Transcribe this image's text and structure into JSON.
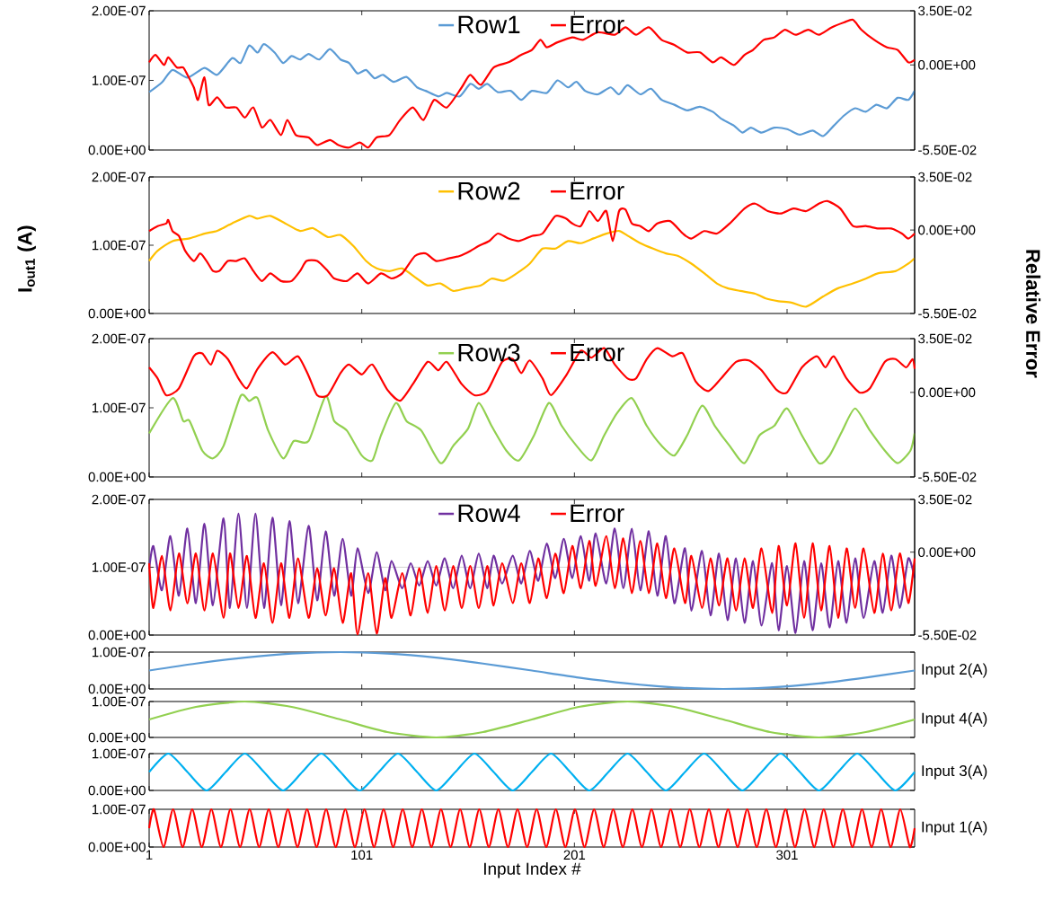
{
  "chart_data": [
    {
      "type": "line",
      "xlim": [
        1,
        361
      ],
      "xticks": [
        1,
        101,
        201,
        301
      ],
      "tick_labels": "y",
      "legend": "top",
      "ylim": [
        0,
        2e-07
      ],
      "yticks": [
        {
          "value": 0,
          "label": "0.00E+00"
        },
        {
          "value": 1e-07,
          "label": "1.00E-07"
        },
        {
          "value": 2e-07,
          "label": "2.00E-07"
        }
      ],
      "y2lim": [
        -0.055,
        0.035
      ],
      "y2ticks": [
        {
          "value": -0.055,
          "label": "-5.50E-02"
        },
        {
          "value": 0,
          "label": "0.00E+00"
        },
        {
          "value": 0.035,
          "label": "3.50E-02"
        }
      ],
      "series": [
        {
          "name": "Row1",
          "color": "#5b9bd5",
          "x": [
            1,
            7,
            12,
            19,
            27,
            33,
            40,
            44,
            48,
            52,
            55,
            60,
            64,
            68,
            72,
            76,
            81,
            86,
            91,
            95,
            99,
            103,
            107,
            111,
            116,
            122,
            127,
            131,
            137,
            141,
            147,
            152,
            156,
            160,
            165,
            171,
            176,
            181,
            188,
            193,
            198,
            202,
            206,
            212,
            218,
            222,
            226,
            232,
            237,
            242,
            248,
            254,
            260,
            266,
            270,
            276,
            280,
            284,
            289,
            295,
            301,
            307,
            313,
            318,
            323,
            328,
            333,
            338,
            343,
            348,
            353,
            358,
            361
          ],
          "values": [
            8.3e-08,
            9.7e-08,
            1.15e-07,
            1.04e-07,
            1.18e-07,
            1.08e-07,
            1.32e-07,
            1.25e-07,
            1.5e-07,
            1.4e-07,
            1.52e-07,
            1.4e-07,
            1.25e-07,
            1.35e-07,
            1.3e-07,
            1.38e-07,
            1.3e-07,
            1.45e-07,
            1.3e-07,
            1.25e-07,
            1.1e-07,
            1.15e-07,
            1.03e-07,
            1.08e-07,
            9.8e-08,
            1.05e-07,
            9e-08,
            8.5e-08,
            7.7e-08,
            8.2e-08,
            7.7e-08,
            9.5e-08,
            8.8e-08,
            9.5e-08,
            8.3e-08,
            8.5e-08,
            7.2e-08,
            8.5e-08,
            8.2e-08,
            1e-07,
            9e-08,
            9.8e-08,
            8.5e-08,
            8e-08,
            9e-08,
            8e-08,
            9.3e-08,
            8e-08,
            8.8e-08,
            7.2e-08,
            6.5e-08,
            5.7e-08,
            6.2e-08,
            5.5e-08,
            4.5e-08,
            3.5e-08,
            2.5e-08,
            3.2e-08,
            2.5e-08,
            3.2e-08,
            3e-08,
            2.2e-08,
            2.8e-08,
            2e-08,
            3.5e-08,
            5e-08,
            6e-08,
            5.5e-08,
            6.5e-08,
            6e-08,
            7.5e-08,
            7.2e-08,
            8.5e-08
          ]
        },
        {
          "name": "Error",
          "color": "#ff0000",
          "axis": "y2",
          "x": [
            1,
            4,
            8,
            10,
            14,
            17,
            19,
            22,
            24,
            27,
            29,
            33,
            37,
            42,
            46,
            50,
            54,
            58,
            63,
            66,
            70,
            76,
            80,
            86,
            90,
            95,
            100,
            104,
            108,
            114,
            119,
            125,
            130,
            135,
            141,
            148,
            152,
            157,
            163,
            170,
            176,
            181,
            185,
            188,
            193,
            200,
            205,
            212,
            220,
            225,
            230,
            236,
            242,
            248,
            254,
            260,
            266,
            270,
            276,
            281,
            285,
            290,
            295,
            300,
            305,
            311,
            316,
            322,
            328,
            332,
            336,
            342,
            348,
            353,
            358,
            361
          ],
          "values": [
            0.0017,
            0.0065,
            0,
            0.0049,
            -0.0016,
            -0.0016,
            -0.0064,
            -0.0145,
            -0.0226,
            -0.008,
            -0.0259,
            -0.021,
            -0.0275,
            -0.0275,
            -0.034,
            -0.0275,
            -0.0404,
            -0.0356,
            -0.0453,
            -0.0356,
            -0.0453,
            -0.0469,
            -0.0518,
            -0.0485,
            -0.0518,
            -0.0534,
            -0.0501,
            -0.0534,
            -0.0469,
            -0.0453,
            -0.0356,
            -0.0275,
            -0.0356,
            -0.0226,
            -0.0275,
            -0.0145,
            -0.0064,
            -0.0129,
            -0.0016,
            0.0017,
            0.0065,
            0.0097,
            0.0162,
            0.0114,
            0.0146,
            0.0178,
            0.0162,
            0.0211,
            0.0195,
            0.0243,
            0.0195,
            0.0243,
            0.0162,
            0.013,
            0.0081,
            0.0081,
            0.0017,
            0.0049,
            0,
            0.0065,
            0.0097,
            0.0162,
            0.0178,
            0.0227,
            0.0195,
            0.0227,
            0.0195,
            0.0243,
            0.0276,
            0.0292,
            0.0227,
            0.0162,
            0.0114,
            0.0097,
            0.0017,
            0.0033
          ]
        }
      ]
    },
    {
      "type": "line",
      "xlim": [
        1,
        361
      ],
      "xticks": [
        1,
        101,
        201,
        301
      ],
      "tick_labels": "y",
      "legend": "top",
      "ylabel": "I$_{out1}$ (A)",
      "y2label": "Relative Error",
      "ylim": [
        0,
        2e-07
      ],
      "yticks": [
        {
          "value": 0,
          "label": "0.00E+00"
        },
        {
          "value": 1e-07,
          "label": "1.00E-07"
        },
        {
          "value": 2e-07,
          "label": "2.00E-07"
        }
      ],
      "y2lim": [
        -0.055,
        0.035
      ],
      "y2ticks": [
        {
          "value": -0.055,
          "label": "-5.50E-02"
        },
        {
          "value": 0,
          "label": "0.00E+00"
        },
        {
          "value": 0.035,
          "label": "3.50E-02"
        }
      ],
      "series": [
        {
          "name": "Row2",
          "color": "#ffc000",
          "x": [
            1,
            5,
            12,
            20,
            27,
            33,
            40,
            48,
            52,
            58,
            65,
            72,
            78,
            85,
            91,
            97,
            103,
            108,
            114,
            120,
            127,
            132,
            138,
            144,
            150,
            157,
            162,
            168,
            174,
            180,
            186,
            192,
            198,
            204,
            210,
            216,
            222,
            226,
            232,
            238,
            244,
            250,
            256,
            262,
            268,
            273,
            279,
            286,
            291,
            297,
            303,
            310,
            318,
            325,
            332,
            338,
            344,
            352,
            358,
            361
          ],
          "values": [
            7.7e-08,
            9.2e-08,
            1.06e-07,
            1.1e-07,
            1.17e-07,
            1.21e-07,
            1.32e-07,
            1.43e-07,
            1.39e-07,
            1.43e-07,
            1.32e-07,
            1.21e-07,
            1.25e-07,
            1.12e-07,
            1.15e-07,
            9.9e-08,
            7.7e-08,
            6.6e-08,
            6.2e-08,
            6.6e-08,
            5.1e-08,
            4.1e-08,
            4.4e-08,
            3.3e-08,
            3.7e-08,
            4.1e-08,
            5.1e-08,
            4.8e-08,
            5.9e-08,
            7.3e-08,
            9.5e-08,
            9.5e-08,
            1.06e-07,
            1.03e-07,
            1.1e-07,
            1.17e-07,
            1.21e-07,
            1.14e-07,
            1.03e-07,
            9.5e-08,
            8.8e-08,
            8.4e-08,
            7.3e-08,
            5.9e-08,
            4.4e-08,
            3.7e-08,
            3.3e-08,
            2.9e-08,
            2.2e-08,
            1.8e-08,
            1.6e-08,
            1e-08,
            2.5e-08,
            3.7e-08,
            4.4e-08,
            5.1e-08,
            5.9e-08,
            6.2e-08,
            7.3e-08,
            8.1e-08
          ]
        },
        {
          "name": "Error",
          "color": "#ff0000",
          "axis": "y2",
          "x": [
            1,
            5,
            9,
            10,
            12,
            15,
            18,
            22,
            25,
            28,
            31,
            34,
            38,
            42,
            46,
            50,
            54,
            58,
            63,
            68,
            72,
            75,
            80,
            85,
            88,
            94,
            99,
            104,
            110,
            115,
            120,
            126,
            131,
            136,
            142,
            147,
            152,
            156,
            161,
            165,
            170,
            175,
            181,
            186,
            192,
            197,
            200,
            204,
            208,
            212,
            216,
            219,
            222,
            225,
            228,
            232,
            236,
            240,
            246,
            252,
            256,
            262,
            268,
            274,
            281,
            286,
            292,
            298,
            304,
            310,
            316,
            320,
            326,
            332,
            338,
            344,
            350,
            355,
            358,
            361
          ],
          "values": [
            -0.0007,
            0.0026,
            0.0043,
            0.0066,
            -0.0007,
            -0.0039,
            -0.0138,
            -0.0204,
            -0.0154,
            -0.0204,
            -0.027,
            -0.027,
            -0.0204,
            -0.0204,
            -0.0187,
            -0.027,
            -0.0336,
            -0.0286,
            -0.0336,
            -0.0336,
            -0.027,
            -0.0204,
            -0.0204,
            -0.027,
            -0.0319,
            -0.0336,
            -0.0286,
            -0.0352,
            -0.0286,
            -0.0319,
            -0.0286,
            -0.0171,
            -0.0154,
            -0.0204,
            -0.0187,
            -0.0171,
            -0.0138,
            -0.0105,
            -0.0072,
            -0.0023,
            -0.0056,
            -0.0072,
            -0.0039,
            -0.0023,
            0.0092,
            0.0076,
            0.0043,
            0.0026,
            0.0125,
            0.0059,
            0.0125,
            -0.0072,
            0.0125,
            0.0135,
            0.0043,
            0.0026,
            -0.0007,
            0.0043,
            0.0059,
            -0.0023,
            -0.0056,
            -0.0007,
            -0.0023,
            0.0043,
            0.0142,
            0.0174,
            0.0125,
            0.0109,
            0.0142,
            0.0125,
            0.0174,
            0.0191,
            0.0142,
            0.0026,
            0.0026,
            0.001,
            0.001,
            -0.0023,
            -0.0056,
            -0.0023
          ]
        }
      ]
    },
    {
      "type": "line",
      "xlim": [
        1,
        361
      ],
      "xticks": [
        1,
        101,
        201,
        301
      ],
      "tick_labels": "y",
      "legend": "top",
      "ylim": [
        0,
        2e-07
      ],
      "yticks": [
        {
          "value": 0,
          "label": "0.00E+00"
        },
        {
          "value": 1e-07,
          "label": "1.00E-07"
        },
        {
          "value": 2e-07,
          "label": "2.00E-07"
        }
      ],
      "y2lim": [
        -0.055,
        0.035
      ],
      "y2ticks": [
        {
          "value": -0.055,
          "label": "-5.50E-02"
        },
        {
          "value": 0,
          "label": "0.00E+00"
        },
        {
          "value": 0.035,
          "label": "3.50E-02"
        }
      ],
      "series": [
        {
          "name": "Row3",
          "color": "#92d050",
          "x": [
            1,
            12,
            17,
            20,
            26,
            31,
            36,
            44,
            48,
            52,
            57,
            64,
            69,
            76,
            84,
            88,
            94,
            101,
            106,
            110,
            117,
            122,
            129,
            138,
            144,
            151,
            156,
            162,
            169,
            175,
            182,
            189,
            195,
            202,
            209,
            215,
            221,
            228,
            235,
            242,
            248,
            254,
            261,
            267,
            274,
            281,
            288,
            295,
            301,
            308,
            316,
            321,
            327,
            333,
            340,
            347,
            353,
            359,
            361
          ],
          "values": [
            6.3e-08,
            1.14e-07,
            8.1e-08,
            8.1e-08,
            3.8e-08,
            2.7e-08,
            4.5e-08,
            1.17e-07,
            1.1e-07,
            1.14e-07,
            6.7e-08,
            2.7e-08,
            5.2e-08,
            5.2e-08,
            1.17e-07,
            8.1e-08,
            6.7e-08,
            3.1e-08,
            2.4e-08,
            6e-08,
            1.07e-07,
            8.1e-08,
            6.7e-08,
            2e-08,
            4.5e-08,
            7e-08,
            1.07e-07,
            7.4e-08,
            3.8e-08,
            2.4e-08,
            6e-08,
            1.07e-07,
            7.4e-08,
            4.5e-08,
            2.4e-08,
            6e-08,
            9.2e-08,
            1.14e-07,
            7.4e-08,
            4.5e-08,
            3.1e-08,
            6e-08,
            1.03e-07,
            7.4e-08,
            4.5e-08,
            2e-08,
            6e-08,
            7.4e-08,
            9.9e-08,
            6e-08,
            2e-08,
            3.1e-08,
            6.7e-08,
            9.9e-08,
            6.7e-08,
            3.8e-08,
            2e-08,
            3.8e-08,
            6.3e-08
          ]
        },
        {
          "name": "Error",
          "color": "#ff0000",
          "axis": "y2",
          "x": [
            1,
            5,
            9,
            15,
            22,
            26,
            30,
            33,
            38,
            43,
            47,
            52,
            59,
            65,
            71,
            76,
            80,
            85,
            91,
            95,
            101,
            106,
            113,
            119,
            125,
            132,
            137,
            141,
            148,
            154,
            160,
            167,
            172,
            176,
            180,
            186,
            190,
            197,
            204,
            209,
            215,
            220,
            226,
            230,
            235,
            240,
            247,
            252,
            258,
            264,
            270,
            277,
            283,
            289,
            296,
            301,
            308,
            315,
            319,
            323,
            329,
            335,
            340,
            347,
            352,
            357,
            360,
            361
          ],
          "values": [
            0.0163,
            0.0091,
            -0.0018,
            0.0027,
            0.0235,
            0.0253,
            0.0181,
            0.0271,
            0.0217,
            0.0091,
            0.0027,
            0.0154,
            0.0262,
            0.0181,
            0.0235,
            0.0108,
            -0.0018,
            -0.0018,
            0.0126,
            0.0181,
            0.0117,
            0.0181,
            0.0018,
            -0.0054,
            0.0054,
            0.0199,
            0.0144,
            0.0199,
            0.0054,
            -0.0018,
            0.0009,
            0.0199,
            0.0217,
            0.0126,
            0.0208,
            0.0091,
            -0.0018,
            0.0108,
            0.0271,
            0.0226,
            0.0288,
            0.0181,
            0.0091,
            0.0091,
            0.0217,
            0.0288,
            0.0235,
            0.0253,
            0.0072,
            0.0009,
            0.0091,
            0.0199,
            0.0208,
            0.0144,
            0.0018,
            0,
            0.0163,
            0.0235,
            0.0163,
            0.0235,
            0.0091,
            0,
            0.0027,
            0.0199,
            0.0217,
            0.0163,
            0.0217,
            0.0154
          ]
        }
      ]
    },
    {
      "type": "line",
      "xlim": [
        1,
        361
      ],
      "xticks": [
        1,
        101,
        201,
        301
      ],
      "tick_labels": "y",
      "legend": "top",
      "grid": "y",
      "ylim": [
        0,
        2e-07
      ],
      "yticks": [
        {
          "value": 0,
          "label": "0.00E+00"
        },
        {
          "value": 1e-07,
          "label": "1.00E-07"
        },
        {
          "value": 2e-07,
          "label": "2.00E-07"
        }
      ],
      "y2lim": [
        -0.055,
        0.035
      ],
      "y2ticks": [
        {
          "value": -0.055,
          "label": "-5.50E-02"
        },
        {
          "value": 0,
          "label": "0.00E+00"
        },
        {
          "value": 0.035,
          "label": "3.50E-02"
        }
      ],
      "x": [
        1,
        3,
        7,
        11,
        15,
        19,
        23,
        27,
        31,
        36,
        39,
        43,
        47,
        51,
        55,
        59,
        63,
        67,
        71,
        76,
        80,
        84,
        88,
        92,
        96,
        99,
        104,
        108,
        112,
        115,
        120,
        124,
        128,
        132,
        136,
        140,
        144,
        148,
        152,
        156,
        160,
        163,
        167,
        172,
        176,
        180,
        184,
        188,
        192,
        196,
        200,
        204,
        208,
        211,
        216,
        220,
        224,
        228,
        232,
        236,
        240,
        244,
        248,
        253,
        256,
        261,
        265,
        269,
        273,
        277,
        281,
        285,
        289,
        294,
        297,
        301,
        305,
        309,
        313,
        317,
        321,
        325,
        329,
        333,
        337,
        342,
        346,
        350,
        354,
        358,
        361
      ],
      "series": [
        {
          "name": "Row4",
          "color": "#7030a0",
          "values": [
            9.8e-08,
            1.31e-07,
            6.6e-08,
            1.46e-07,
            5.8e-08,
            1.57e-07,
            4.7e-08,
            1.64e-07,
            4.4e-08,
            1.72e-07,
            4e-08,
            1.79e-07,
            4e-08,
            1.79e-07,
            4e-08,
            1.73e-07,
            4.4e-08,
            1.68e-07,
            4.7e-08,
            1.61e-07,
            5.1e-08,
            1.53e-07,
            5.8e-08,
            1.42e-07,
            5.8e-08,
            1.28e-07,
            6.2e-08,
            1.22e-07,
            6.6e-08,
            1.09e-07,
            6.9e-08,
            1.06e-07,
            7.3e-08,
            1.09e-07,
            7.3e-08,
            1.13e-07,
            6.9e-08,
            1.17e-07,
            6.9e-08,
            1.2e-07,
            6.9e-08,
            1.17e-07,
            7.6e-08,
            1.17e-07,
            7.6e-08,
            1.24e-07,
            8e-08,
            1.35e-07,
            8.4e-08,
            1.42e-07,
            8.4e-08,
            1.46e-07,
            8e-08,
            1.5e-07,
            7.6e-08,
            1.57e-07,
            6.9e-08,
            1.57e-07,
            6.6e-08,
            1.53e-07,
            5.8e-08,
            1.46e-07,
            4.7e-08,
            1.28e-07,
            3.6e-08,
            1.24e-07,
            2.9e-08,
            1.2e-07,
            2.2e-08,
            1.13e-07,
            1.8e-08,
            1.09e-07,
            1.4e-08,
            1.06e-07,
            7e-09,
            1.02e-07,
            3e-09,
            1.09e-07,
            7e-09,
            1.06e-07,
            1.1e-08,
            1.09e-07,
            1.8e-08,
            1.13e-07,
            2.5e-08,
            1.09e-07,
            3.3e-08,
            1.17e-07,
            4e-08,
            1.13e-07,
            8.4e-08
          ]
        },
        {
          "name": "Error",
          "color": "#ff0000",
          "axis": "y2",
          "values": [
            -0.0074,
            -0.037,
            -0.0025,
            -0.0387,
            -0.0009,
            -0.034,
            -0.0009,
            -0.0387,
            -0.0009,
            -0.0436,
            -0.0009,
            -0.037,
            -0.0025,
            -0.0436,
            -0.0074,
            -0.0469,
            -0.0074,
            -0.0436,
            -0.0041,
            -0.0436,
            -0.0107,
            -0.042,
            -0.0107,
            -0.0469,
            -0.014,
            -0.0545,
            -0.014,
            -0.054,
            -0.0173,
            -0.0436,
            -0.014,
            -0.042,
            -0.0107,
            -0.0403,
            -0.0091,
            -0.0387,
            -0.0091,
            -0.037,
            -0.0091,
            -0.037,
            -0.0091,
            -0.0354,
            -0.0074,
            -0.0338,
            -0.0074,
            -0.0338,
            -0.0041,
            -0.0305,
            -0.0009,
            -0.0272,
            0.0041,
            -0.0239,
            0.0075,
            -0.0223,
            0.0107,
            -0.0239,
            0.0091,
            -0.0272,
            0.0075,
            -0.0272,
            0.0058,
            -0.0305,
            0.0025,
            -0.0338,
            -0.0025,
            -0.037,
            -0.0041,
            -0.0354,
            -0.0041,
            -0.0387,
            -0.0041,
            -0.037,
            0.0025,
            -0.0403,
            0.0041,
            -0.0354,
            0.0058,
            -0.0436,
            0.0058,
            -0.0387,
            0.0041,
            -0.0436,
            0.0025,
            -0.037,
            0.0025,
            -0.0403,
            -0.0009,
            -0.0387,
            -0.0009,
            -0.0338,
            -0.0041
          ]
        }
      ]
    },
    {
      "type": "line",
      "xlim": [
        1,
        361
      ],
      "xticks": [
        1,
        101,
        201,
        301
      ],
      "tick_labels": "y",
      "ylabel": "Input 2(A)",
      "color": "#5b9bd5",
      "ylim": [
        0,
        1e-07
      ],
      "yticks": [
        {
          "value": 0,
          "label": "0.00E+00"
        },
        {
          "value": 1e-07,
          "label": "1.00E-07"
        }
      ],
      "x": [
        1,
        23,
        46,
        68,
        91,
        113,
        136,
        158,
        181,
        203,
        226,
        248,
        271,
        293,
        316,
        338,
        361
      ],
      "values": [
        5e-08,
        6.9e-08,
        8.5e-08,
        9.6e-08,
        1e-07,
        9.6e-08,
        8.5e-08,
        6.9e-08,
        5e-08,
        3.1e-08,
        1.5e-08,
        4e-09,
        0,
        4e-09,
        1.5e-08,
        3.1e-08,
        5e-08
      ]
    },
    {
      "type": "line",
      "xlim": [
        1,
        361
      ],
      "xticks": [
        1,
        101,
        201,
        301
      ],
      "tick_labels": "y",
      "ylabel": "Input 4(A)",
      "color": "#92d050",
      "ylim": [
        0,
        1e-07
      ],
      "yticks": [
        {
          "value": 0,
          "label": "0.00E+00"
        },
        {
          "value": 1e-07,
          "label": "1.00E-07"
        }
      ],
      "x": [
        1,
        23,
        46,
        68,
        91,
        113,
        136,
        158,
        181,
        203,
        226,
        248,
        271,
        293,
        316,
        338,
        361
      ],
      "values": [
        5e-08,
        8.5e-08,
        1e-07,
        8.5e-08,
        5e-08,
        1.5e-08,
        0,
        1.5e-08,
        5e-08,
        8.5e-08,
        1e-07,
        8.5e-08,
        5e-08,
        1.5e-08,
        0,
        1.5e-08,
        5e-08
      ]
    },
    {
      "type": "line",
      "xlim": [
        1,
        361
      ],
      "xticks": [
        1,
        101,
        201,
        301
      ],
      "tick_labels": "y",
      "ylabel": "Input 3(A)",
      "color": "#00b0f0",
      "ylim": [
        0,
        1e-07
      ],
      "yticks": [
        {
          "value": 0,
          "label": "0.00E+00"
        },
        {
          "value": 1e-07,
          "label": "1.00E-07"
        }
      ],
      "x": [
        1,
        10,
        19,
        28,
        37,
        46,
        55,
        64,
        73,
        82,
        91,
        100,
        109,
        118,
        127,
        136,
        145,
        154,
        163,
        172,
        181,
        190,
        199,
        208,
        217,
        226,
        235,
        244,
        253,
        262,
        271,
        280,
        289,
        298,
        307,
        316,
        325,
        334,
        343,
        352,
        361
      ],
      "values": [
        5e-08,
        1e-07,
        5e-08,
        0,
        5e-08,
        1e-07,
        5e-08,
        0,
        5e-08,
        1e-07,
        5e-08,
        0,
        5e-08,
        1e-07,
        5e-08,
        0,
        5e-08,
        1e-07,
        5e-08,
        0,
        5e-08,
        1e-07,
        5e-08,
        0,
        5e-08,
        1e-07,
        5e-08,
        0,
        5e-08,
        1e-07,
        5e-08,
        0,
        5e-08,
        1e-07,
        5e-08,
        0,
        5e-08,
        1e-07,
        5e-08,
        0,
        5e-08
      ]
    },
    {
      "type": "line",
      "xlim": [
        1,
        361
      ],
      "xticks": [
        1,
        101,
        201,
        301
      ],
      "xlabel": "Input Index #",
      "ylabel": "Input 1(A)",
      "color": "#ff0000",
      "ylim": [
        0,
        1e-07
      ],
      "yticks": [
        {
          "value": 0,
          "label": "0.00E+00"
        },
        {
          "value": 1e-07,
          "label": "1.00E-07"
        }
      ],
      "x": [
        1,
        3.25,
        7.75,
        12.25,
        16.75,
        21.25,
        25.75,
        30.25,
        34.75,
        39.25,
        43.75,
        48.25,
        52.75,
        57.25,
        61.75,
        66.25,
        70.75,
        75.25,
        79.75,
        84.25,
        88.75,
        93.25,
        97.75,
        102.25,
        106.75,
        111.25,
        115.75,
        120.25,
        124.75,
        129.25,
        133.75,
        138.25,
        142.75,
        147.25,
        151.75,
        156.25,
        160.75,
        165.25,
        169.75,
        174.25,
        178.75,
        183.25,
        187.75,
        192.25,
        196.75,
        201.25,
        205.75,
        210.25,
        214.75,
        219.25,
        223.75,
        228.25,
        232.75,
        237.25,
        241.75,
        246.25,
        250.75,
        255.25,
        259.75,
        264.25,
        268.75,
        273.25,
        277.75,
        282.25,
        286.75,
        291.25,
        295.75,
        300.25,
        304.75,
        309.25,
        313.75,
        318.25,
        322.75,
        327.25,
        331.75,
        336.25,
        340.75,
        345.25,
        349.75,
        354.25,
        358.75,
        361
      ],
      "values": [
        5e-08,
        1e-07,
        0,
        1e-07,
        0,
        1e-07,
        0,
        1e-07,
        0,
        1e-07,
        0,
        1e-07,
        0,
        1e-07,
        0,
        1e-07,
        0,
        1e-07,
        0,
        1e-07,
        0,
        1e-07,
        0,
        1e-07,
        0,
        1e-07,
        0,
        1e-07,
        0,
        1e-07,
        0,
        1e-07,
        0,
        1e-07,
        0,
        1e-07,
        0,
        1e-07,
        0,
        1e-07,
        0,
        1e-07,
        0,
        1e-07,
        0,
        1e-07,
        0,
        1e-07,
        0,
        1e-07,
        0,
        1e-07,
        0,
        1e-07,
        0,
        1e-07,
        0,
        1e-07,
        0,
        1e-07,
        0,
        1e-07,
        0,
        1e-07,
        0,
        1e-07,
        0,
        1e-07,
        0,
        1e-07,
        0,
        1e-07,
        0,
        1e-07,
        0,
        1e-07,
        0,
        1e-07,
        0,
        1e-07,
        0,
        5e-08
      ]
    }
  ]
}
